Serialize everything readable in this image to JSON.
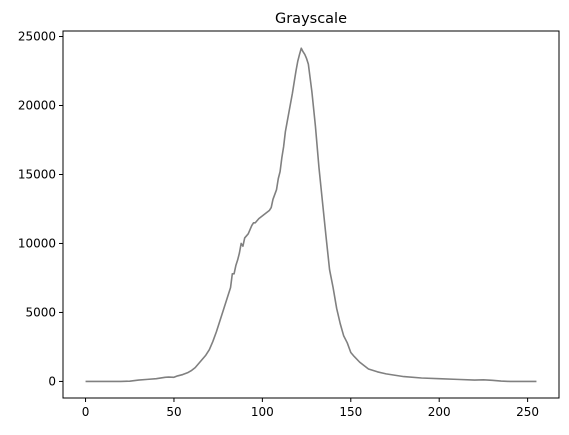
{
  "chart_data": {
    "type": "line",
    "title": "Grayscale",
    "xlabel": "",
    "ylabel": "",
    "xlim": [
      -12.75,
      267.75
    ],
    "ylim": [
      -1200,
      25400
    ],
    "xticks": [
      0,
      50,
      100,
      150,
      200,
      250
    ],
    "yticks": [
      0,
      5000,
      10000,
      15000,
      20000,
      25000
    ],
    "grid": false,
    "legend": "none",
    "series": [
      {
        "color": "#808080",
        "points": [
          [
            0,
            0
          ],
          [
            10,
            0
          ],
          [
            20,
            0
          ],
          [
            25,
            20
          ],
          [
            30,
            100
          ],
          [
            35,
            150
          ],
          [
            40,
            200
          ],
          [
            45,
            300
          ],
          [
            47,
            320
          ],
          [
            50,
            300
          ],
          [
            52,
            400
          ],
          [
            55,
            500
          ],
          [
            58,
            650
          ],
          [
            60,
            800
          ],
          [
            62,
            1000
          ],
          [
            64,
            1300
          ],
          [
            66,
            1600
          ],
          [
            68,
            1900
          ],
          [
            70,
            2300
          ],
          [
            72,
            2900
          ],
          [
            74,
            3600
          ],
          [
            76,
            4400
          ],
          [
            78,
            5200
          ],
          [
            80,
            6000
          ],
          [
            82,
            6800
          ],
          [
            83,
            7800
          ],
          [
            84,
            7800
          ],
          [
            85,
            8400
          ],
          [
            86,
            8800
          ],
          [
            87,
            9300
          ],
          [
            88,
            10000
          ],
          [
            89,
            9800
          ],
          [
            90,
            10400
          ],
          [
            92,
            10700
          ],
          [
            94,
            11300
          ],
          [
            95,
            11500
          ],
          [
            96,
            11500
          ],
          [
            98,
            11800
          ],
          [
            100,
            12000
          ],
          [
            102,
            12200
          ],
          [
            104,
            12400
          ],
          [
            105,
            12600
          ],
          [
            106,
            13200
          ],
          [
            108,
            13900
          ],
          [
            109,
            14700
          ],
          [
            110,
            15200
          ],
          [
            111,
            16200
          ],
          [
            112,
            17000
          ],
          [
            113,
            18100
          ],
          [
            114,
            18800
          ],
          [
            115,
            19500
          ],
          [
            116,
            20200
          ],
          [
            117,
            20900
          ],
          [
            118,
            21700
          ],
          [
            119,
            22500
          ],
          [
            120,
            23200
          ],
          [
            121,
            23700
          ],
          [
            122,
            24150
          ],
          [
            123,
            23900
          ],
          [
            124,
            23700
          ],
          [
            125,
            23400
          ],
          [
            126,
            23000
          ],
          [
            128,
            21000
          ],
          [
            130,
            18500
          ],
          [
            132,
            15500
          ],
          [
            134,
            13000
          ],
          [
            136,
            10500
          ],
          [
            138,
            8100
          ],
          [
            140,
            6800
          ],
          [
            142,
            5300
          ],
          [
            144,
            4200
          ],
          [
            146,
            3300
          ],
          [
            148,
            2800
          ],
          [
            150,
            2100
          ],
          [
            152,
            1800
          ],
          [
            155,
            1400
          ],
          [
            158,
            1100
          ],
          [
            160,
            900
          ],
          [
            165,
            700
          ],
          [
            170,
            550
          ],
          [
            175,
            450
          ],
          [
            180,
            350
          ],
          [
            190,
            250
          ],
          [
            200,
            200
          ],
          [
            210,
            150
          ],
          [
            220,
            100
          ],
          [
            225,
            120
          ],
          [
            230,
            80
          ],
          [
            235,
            30
          ],
          [
            240,
            0
          ],
          [
            255,
            0
          ]
        ]
      }
    ]
  }
}
